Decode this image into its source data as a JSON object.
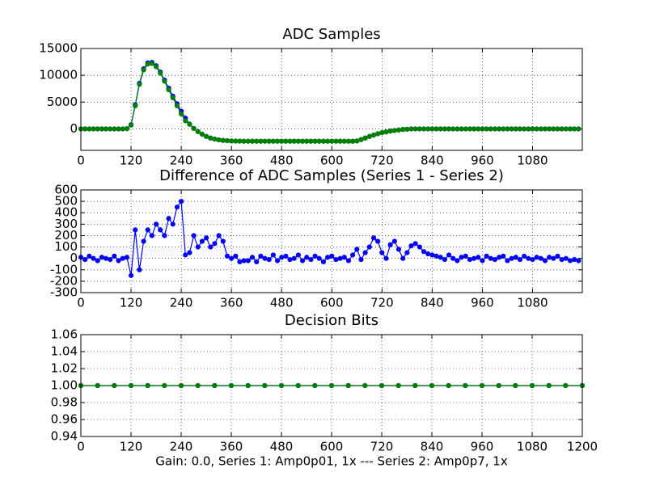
{
  "chart_data": [
    {
      "type": "line",
      "title": "ADC Samples",
      "x": [
        0,
        10,
        20,
        30,
        40,
        50,
        60,
        70,
        80,
        90,
        100,
        110,
        120,
        130,
        140,
        150,
        160,
        170,
        180,
        190,
        200,
        210,
        220,
        230,
        240,
        250,
        260,
        270,
        280,
        290,
        300,
        310,
        320,
        330,
        340,
        350,
        360,
        370,
        380,
        390,
        400,
        410,
        420,
        430,
        440,
        450,
        460,
        470,
        480,
        490,
        500,
        510,
        520,
        530,
        540,
        550,
        560,
        570,
        580,
        590,
        600,
        610,
        620,
        630,
        640,
        650,
        660,
        670,
        680,
        690,
        700,
        710,
        720,
        730,
        740,
        750,
        760,
        770,
        780,
        790,
        800,
        810,
        820,
        830,
        840,
        850,
        860,
        870,
        880,
        890,
        900,
        910,
        920,
        930,
        940,
        950,
        960,
        970,
        980,
        990,
        1000,
        1010,
        1020,
        1030,
        1040,
        1050,
        1060,
        1070,
        1080,
        1090,
        1100,
        1110,
        1120,
        1130,
        1140,
        1150,
        1160,
        1170,
        1180,
        1190
      ],
      "series": [
        {
          "color": "#0000ff",
          "values": [
            0,
            0,
            0,
            0,
            0,
            0,
            0,
            0,
            0,
            0,
            0,
            50,
            800,
            4500,
            8500,
            11200,
            12300,
            12400,
            11800,
            10600,
            9100,
            7600,
            6100,
            4700,
            3300,
            2000,
            900,
            100,
            -500,
            -1000,
            -1400,
            -1700,
            -1900,
            -2050,
            -2150,
            -2200,
            -2250,
            -2270,
            -2280,
            -2300,
            -2300,
            -2300,
            -2300,
            -2300,
            -2300,
            -2300,
            -2300,
            -2300,
            -2300,
            -2300,
            -2300,
            -2300,
            -2300,
            -2300,
            -2300,
            -2300,
            -2300,
            -2300,
            -2300,
            -2300,
            -2300,
            -2300,
            -2300,
            -2300,
            -2300,
            -2300,
            -2250,
            -2000,
            -1700,
            -1400,
            -1150,
            -900,
            -700,
            -550,
            -400,
            -300,
            -200,
            -100,
            -50,
            0,
            0,
            0,
            0,
            0,
            0,
            0,
            0,
            0,
            0,
            0,
            0,
            0,
            0,
            0,
            0,
            0,
            0,
            0,
            0,
            0,
            0,
            0,
            0,
            0,
            0,
            0,
            0,
            0,
            0,
            0,
            0,
            0,
            0,
            0,
            0,
            0,
            0,
            0,
            0,
            0
          ]
        },
        {
          "color": "#008000",
          "values": [
            0,
            0,
            0,
            0,
            0,
            0,
            0,
            0,
            0,
            0,
            0,
            50,
            700,
            4300,
            8300,
            11000,
            12100,
            12200,
            11600,
            10400,
            8900,
            7300,
            5800,
            4300,
            2800,
            1500,
            850,
            80,
            -500,
            -1000,
            -1400,
            -1700,
            -1900,
            -2050,
            -2150,
            -2200,
            -2250,
            -2270,
            -2280,
            -2300,
            -2300,
            -2300,
            -2300,
            -2300,
            -2300,
            -2300,
            -2300,
            -2300,
            -2300,
            -2300,
            -2300,
            -2300,
            -2300,
            -2300,
            -2300,
            -2300,
            -2300,
            -2300,
            -2300,
            -2300,
            -2300,
            -2300,
            -2300,
            -2300,
            -2300,
            -2300,
            -2250,
            -2000,
            -1700,
            -1400,
            -1150,
            -900,
            -700,
            -550,
            -400,
            -300,
            -200,
            -100,
            -50,
            0,
            0,
            0,
            0,
            0,
            0,
            0,
            0,
            0,
            0,
            0,
            0,
            0,
            0,
            0,
            0,
            0,
            0,
            0,
            0,
            0,
            0,
            0,
            0,
            0,
            0,
            0,
            0,
            0,
            0,
            0,
            0,
            0,
            0,
            0,
            0,
            0,
            0,
            0,
            0,
            0
          ]
        }
      ],
      "xlim": [
        0,
        1199
      ],
      "xticks": [
        0,
        120,
        240,
        360,
        480,
        600,
        720,
        840,
        960,
        1080
      ],
      "ylim": [
        -4000,
        15000
      ],
      "yticks": [
        0,
        5000,
        10000,
        15000
      ],
      "grid": true
    },
    {
      "type": "line",
      "title": "Difference of ADC Samples (Series 1 - Series 2)",
      "x": [
        0,
        10,
        20,
        30,
        40,
        50,
        60,
        70,
        80,
        90,
        100,
        110,
        120,
        130,
        140,
        150,
        160,
        170,
        180,
        190,
        200,
        210,
        220,
        230,
        240,
        250,
        260,
        270,
        280,
        290,
        300,
        310,
        320,
        330,
        340,
        350,
        360,
        370,
        380,
        390,
        400,
        410,
        420,
        430,
        440,
        450,
        460,
        470,
        480,
        490,
        500,
        510,
        520,
        530,
        540,
        550,
        560,
        570,
        580,
        590,
        600,
        610,
        620,
        630,
        640,
        650,
        660,
        670,
        680,
        690,
        700,
        710,
        720,
        730,
        740,
        750,
        760,
        770,
        780,
        790,
        800,
        810,
        820,
        830,
        840,
        850,
        860,
        870,
        880,
        890,
        900,
        910,
        920,
        930,
        940,
        950,
        960,
        970,
        980,
        990,
        1000,
        1010,
        1020,
        1030,
        1040,
        1050,
        1060,
        1070,
        1080,
        1090,
        1100,
        1110,
        1120,
        1130,
        1140,
        1150,
        1160,
        1170,
        1180,
        1190
      ],
      "series": [
        {
          "color": "#0000ff",
          "values": [
            10,
            -10,
            20,
            0,
            -20,
            10,
            0,
            -10,
            20,
            -20,
            0,
            10,
            -150,
            250,
            -100,
            150,
            250,
            200,
            300,
            250,
            200,
            350,
            300,
            450,
            500,
            30,
            50,
            200,
            100,
            150,
            180,
            100,
            130,
            200,
            150,
            20,
            0,
            20,
            -30,
            -20,
            -20,
            10,
            -30,
            20,
            0,
            -10,
            30,
            -20,
            10,
            20,
            -10,
            0,
            30,
            -20,
            10,
            -10,
            20,
            0,
            -30,
            10,
            20,
            -10,
            0,
            10,
            -20,
            30,
            80,
            -10,
            50,
            100,
            180,
            150,
            50,
            0,
            120,
            150,
            80,
            0,
            50,
            110,
            130,
            100,
            60,
            40,
            30,
            20,
            10,
            -10,
            30,
            0,
            -20,
            10,
            20,
            -10,
            0,
            10,
            -20,
            20,
            0,
            -10,
            10,
            20,
            -20,
            0,
            10,
            -10,
            20,
            0,
            -10,
            10,
            0,
            -20,
            10,
            0,
            20,
            -10,
            0,
            -20,
            -10,
            -20
          ]
        }
      ],
      "xlim": [
        0,
        1199
      ],
      "xticks": [
        0,
        120,
        240,
        360,
        480,
        600,
        720,
        840,
        960,
        1080
      ],
      "ylim": [
        -300,
        600
      ],
      "yticks": [
        -300,
        -200,
        -100,
        0,
        100,
        200,
        300,
        400,
        500,
        600
      ],
      "grid": true
    },
    {
      "type": "line",
      "title": "Decision Bits",
      "xlabel": "Gain: 0.0, Series 1: Amp0p01, 1x --- Series 2: Amp0p7, 1x",
      "x": [
        0,
        40,
        80,
        120,
        160,
        200,
        240,
        280,
        320,
        360,
        400,
        440,
        480,
        520,
        560,
        600,
        640,
        680,
        720,
        760,
        800,
        840,
        880,
        920,
        960,
        1000,
        1040,
        1080,
        1120,
        1160,
        1200
      ],
      "series": [
        {
          "color": "#0000ff",
          "values": [
            1,
            1,
            1,
            1,
            1,
            1,
            1,
            1,
            1,
            1,
            1,
            1,
            1,
            1,
            1,
            1,
            1,
            1,
            1,
            1,
            1,
            1,
            1,
            1,
            1,
            1,
            1,
            1,
            1,
            1,
            1
          ]
        },
        {
          "color": "#008000",
          "values": [
            1,
            1,
            1,
            1,
            1,
            1,
            1,
            1,
            1,
            1,
            1,
            1,
            1,
            1,
            1,
            1,
            1,
            1,
            1,
            1,
            1,
            1,
            1,
            1,
            1,
            1,
            1,
            1,
            1,
            1,
            1
          ]
        }
      ],
      "xlim": [
        0,
        1200
      ],
      "xticks": [
        0,
        120,
        240,
        360,
        480,
        600,
        720,
        840,
        960,
        1080,
        1200
      ],
      "ylim": [
        0.94,
        1.06
      ],
      "yticks": [
        0.94,
        0.96,
        0.98,
        {
          "value": 1,
          "label": "1.00"
        },
        1.02,
        1.04,
        1.06
      ],
      "grid": true
    }
  ]
}
